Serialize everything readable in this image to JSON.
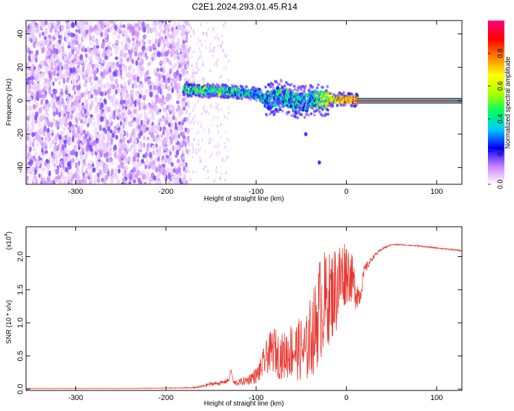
{
  "title": "C2E1.2024.293.01.45.R14",
  "chart_data": [
    {
      "type": "heatmap",
      "xlabel": "Height of straight line (km)",
      "ylabel": "Frequency (Hz)",
      "xlim": [
        -355,
        128
      ],
      "ylim": [
        -50,
        48
      ],
      "x_ticks": [
        "-300",
        "-200",
        "-100",
        "0",
        "100"
      ],
      "y_ticks": [
        "-40",
        "-20",
        "0",
        "20",
        "40"
      ],
      "grid": false,
      "colorbar": {
        "label": "Normalized spectral amplitude",
        "range": [
          0,
          1
        ],
        "ticks": [
          "0.0",
          "0.2",
          "0.4",
          "0.6",
          "0.8"
        ],
        "colormap": [
          "#ffffff",
          "#c880ff",
          "#0000ff",
          "#00c8ff",
          "#00ff60",
          "#b0ff00",
          "#ffff00",
          "#ff8000",
          "#ff0000",
          "#ff0080"
        ]
      },
      "noise_region_x": [
        -355,
        -175
      ],
      "signal_track": [
        {
          "x": -180,
          "y": 7,
          "amp": 0.55
        },
        {
          "x": -160,
          "y": 6,
          "amp": 0.6
        },
        {
          "x": -140,
          "y": 6,
          "amp": 0.6
        },
        {
          "x": -120,
          "y": 5,
          "amp": 0.55
        },
        {
          "x": -100,
          "y": 4,
          "amp": 0.5
        },
        {
          "x": -85,
          "y": 0,
          "amp": 0.45
        },
        {
          "x": -75,
          "y": 3,
          "amp": 0.5
        },
        {
          "x": -60,
          "y": 0,
          "amp": 0.5
        },
        {
          "x": -45,
          "y": -1,
          "amp": 0.45
        },
        {
          "x": -35,
          "y": 1,
          "amp": 0.55
        },
        {
          "x": -20,
          "y": 0,
          "amp": 0.75
        },
        {
          "x": -10,
          "y": 1,
          "amp": 0.85
        },
        {
          "x": 0,
          "y": 1,
          "amp": 0.9
        },
        {
          "x": 20,
          "y": 0,
          "amp": 0.95
        },
        {
          "x": 60,
          "y": 0,
          "amp": 0.95
        },
        {
          "x": 128,
          "y": 0,
          "amp": 0.95
        }
      ],
      "stray_points": [
        {
          "x": -45,
          "y": -20
        },
        {
          "x": -30,
          "y": -37
        }
      ]
    },
    {
      "type": "line",
      "xlabel": "Height of straight line (km)",
      "ylabel": "SNR (10 * v/v)",
      "y_scale_label": "(x10",
      "y_scale_exp": "4",
      "xlim": [
        -355,
        128
      ],
      "ylim": [
        -0.02,
        2.45
      ],
      "x_ticks": [
        "-300",
        "-200",
        "-100",
        "0",
        "100"
      ],
      "y_ticks": [
        "0.0",
        "0.5",
        "1.0",
        "1.5",
        "2.0"
      ],
      "grid": false,
      "series": [
        {
          "color": "#e8362e",
          "x": [
            -355,
            -300,
            -250,
            -200,
            -170,
            -160,
            -150,
            -140,
            -135,
            -130,
            -128,
            -125,
            -120,
            -110,
            -105,
            -100,
            -95,
            -90,
            -85,
            -80,
            -75,
            -70,
            -65,
            -60,
            -55,
            -50,
            -45,
            -40,
            -35,
            -30,
            -25,
            -20,
            -15,
            -10,
            -5,
            0,
            5,
            10,
            15,
            20,
            30,
            40,
            50,
            60,
            80,
            100,
            120,
            128
          ],
          "y": [
            0.01,
            0.01,
            0.01,
            0.015,
            0.02,
            0.04,
            0.08,
            0.09,
            0.11,
            0.14,
            0.3,
            0.09,
            0.1,
            0.13,
            0.18,
            0.2,
            0.3,
            0.45,
            0.55,
            0.6,
            0.5,
            0.5,
            0.55,
            0.6,
            0.58,
            0.6,
            0.55,
            0.8,
            0.9,
            1.2,
            1.3,
            1.35,
            1.45,
            1.55,
            1.7,
            1.8,
            1.7,
            1.5,
            1.4,
            1.8,
            2.0,
            2.12,
            2.18,
            2.18,
            2.16,
            2.13,
            2.1,
            2.09
          ],
          "noise": [
            0.003,
            0.003,
            0.003,
            0.005,
            0.01,
            0.02,
            0.03,
            0.03,
            0.03,
            0.04,
            0.0,
            0.04,
            0.05,
            0.07,
            0.1,
            0.12,
            0.18,
            0.25,
            0.3,
            0.35,
            0.35,
            0.35,
            0.4,
            0.45,
            0.45,
            0.5,
            0.5,
            0.6,
            0.7,
            0.8,
            0.8,
            0.7,
            0.7,
            0.7,
            0.6,
            0.5,
            0.4,
            0.3,
            0.15,
            0.08,
            0.03,
            0.02,
            0.01,
            0.01,
            0.01,
            0.01,
            0.01,
            0.01
          ]
        }
      ]
    }
  ]
}
